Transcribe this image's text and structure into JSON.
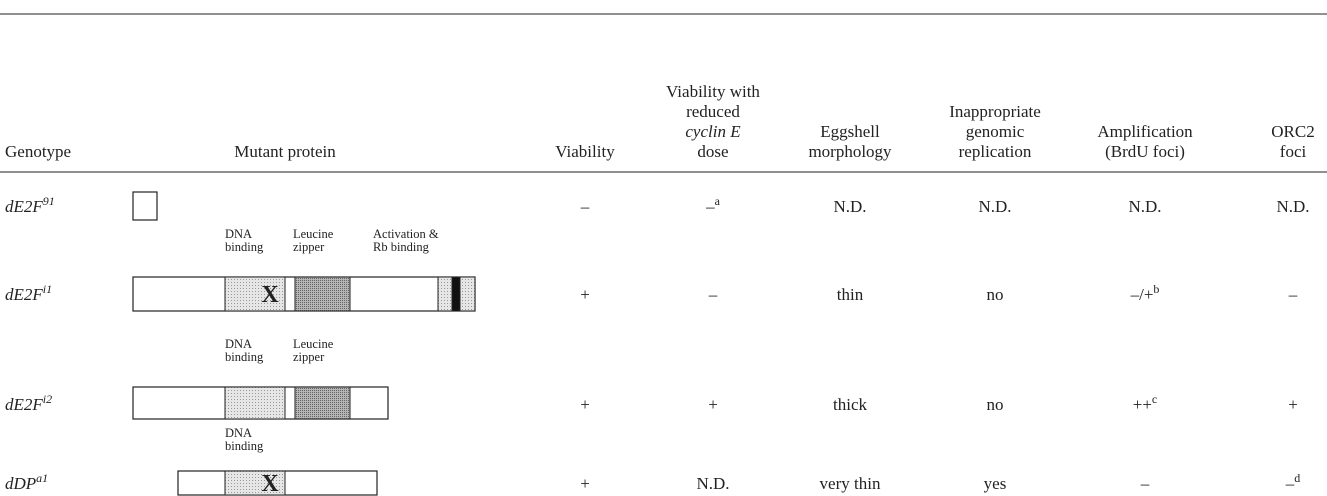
{
  "header": {
    "columns": [
      [
        "Genotype"
      ],
      [
        "Mutant protein"
      ],
      [
        "Viability"
      ],
      [
        "Viability with",
        "reduced",
        "cyclin E",
        "dose"
      ],
      [
        "Eggshell",
        "morphology"
      ],
      [
        "Inappropriate",
        "genomic",
        "replication"
      ],
      [
        "Amplification",
        "(BrdU foci)"
      ],
      [
        "ORC2",
        "foci"
      ]
    ]
  },
  "rows": [
    {
      "genotype": {
        "base": "dE2F",
        "sup": "91"
      },
      "domain_labels": [],
      "domain_mark": null,
      "cells": [
        {
          "text": "–"
        },
        {
          "text": "–",
          "sup": "a"
        },
        {
          "text": "N.D."
        },
        {
          "text": "N.D."
        },
        {
          "text": "N.D."
        },
        {
          "text": "N.D."
        }
      ]
    },
    {
      "genotype": {
        "base": "dE2F",
        "sup": "i1"
      },
      "domain_labels": [
        [
          "DNA",
          "binding"
        ],
        [
          "Leucine",
          "zipper"
        ],
        [
          "Activation &",
          "Rb binding"
        ]
      ],
      "domain_mark": "X",
      "cells": [
        {
          "text": "+"
        },
        {
          "text": "–"
        },
        {
          "text": "thin"
        },
        {
          "text": "no"
        },
        {
          "text": "–/+",
          "sup": "b"
        },
        {
          "text": "–"
        }
      ]
    },
    {
      "genotype": {
        "base": "dE2F",
        "sup": "i2"
      },
      "domain_labels": [
        [
          "DNA",
          "binding"
        ],
        [
          "Leucine",
          "zipper"
        ]
      ],
      "domain_mark": null,
      "cells": [
        {
          "text": "+"
        },
        {
          "text": "+"
        },
        {
          "text": "thick"
        },
        {
          "text": "no"
        },
        {
          "text": "++",
          "sup": "c"
        },
        {
          "text": "+"
        }
      ]
    },
    {
      "genotype": {
        "base": "dDP",
        "sup": "a1"
      },
      "domain_labels": [
        [
          "DNA",
          "binding"
        ]
      ],
      "domain_mark": "X",
      "cells": [
        {
          "text": "+"
        },
        {
          "text": "N.D."
        },
        {
          "text": "very thin"
        },
        {
          "text": "yes"
        },
        {
          "text": "–"
        },
        {
          "text": "–",
          "sup": "d"
        }
      ]
    }
  ]
}
